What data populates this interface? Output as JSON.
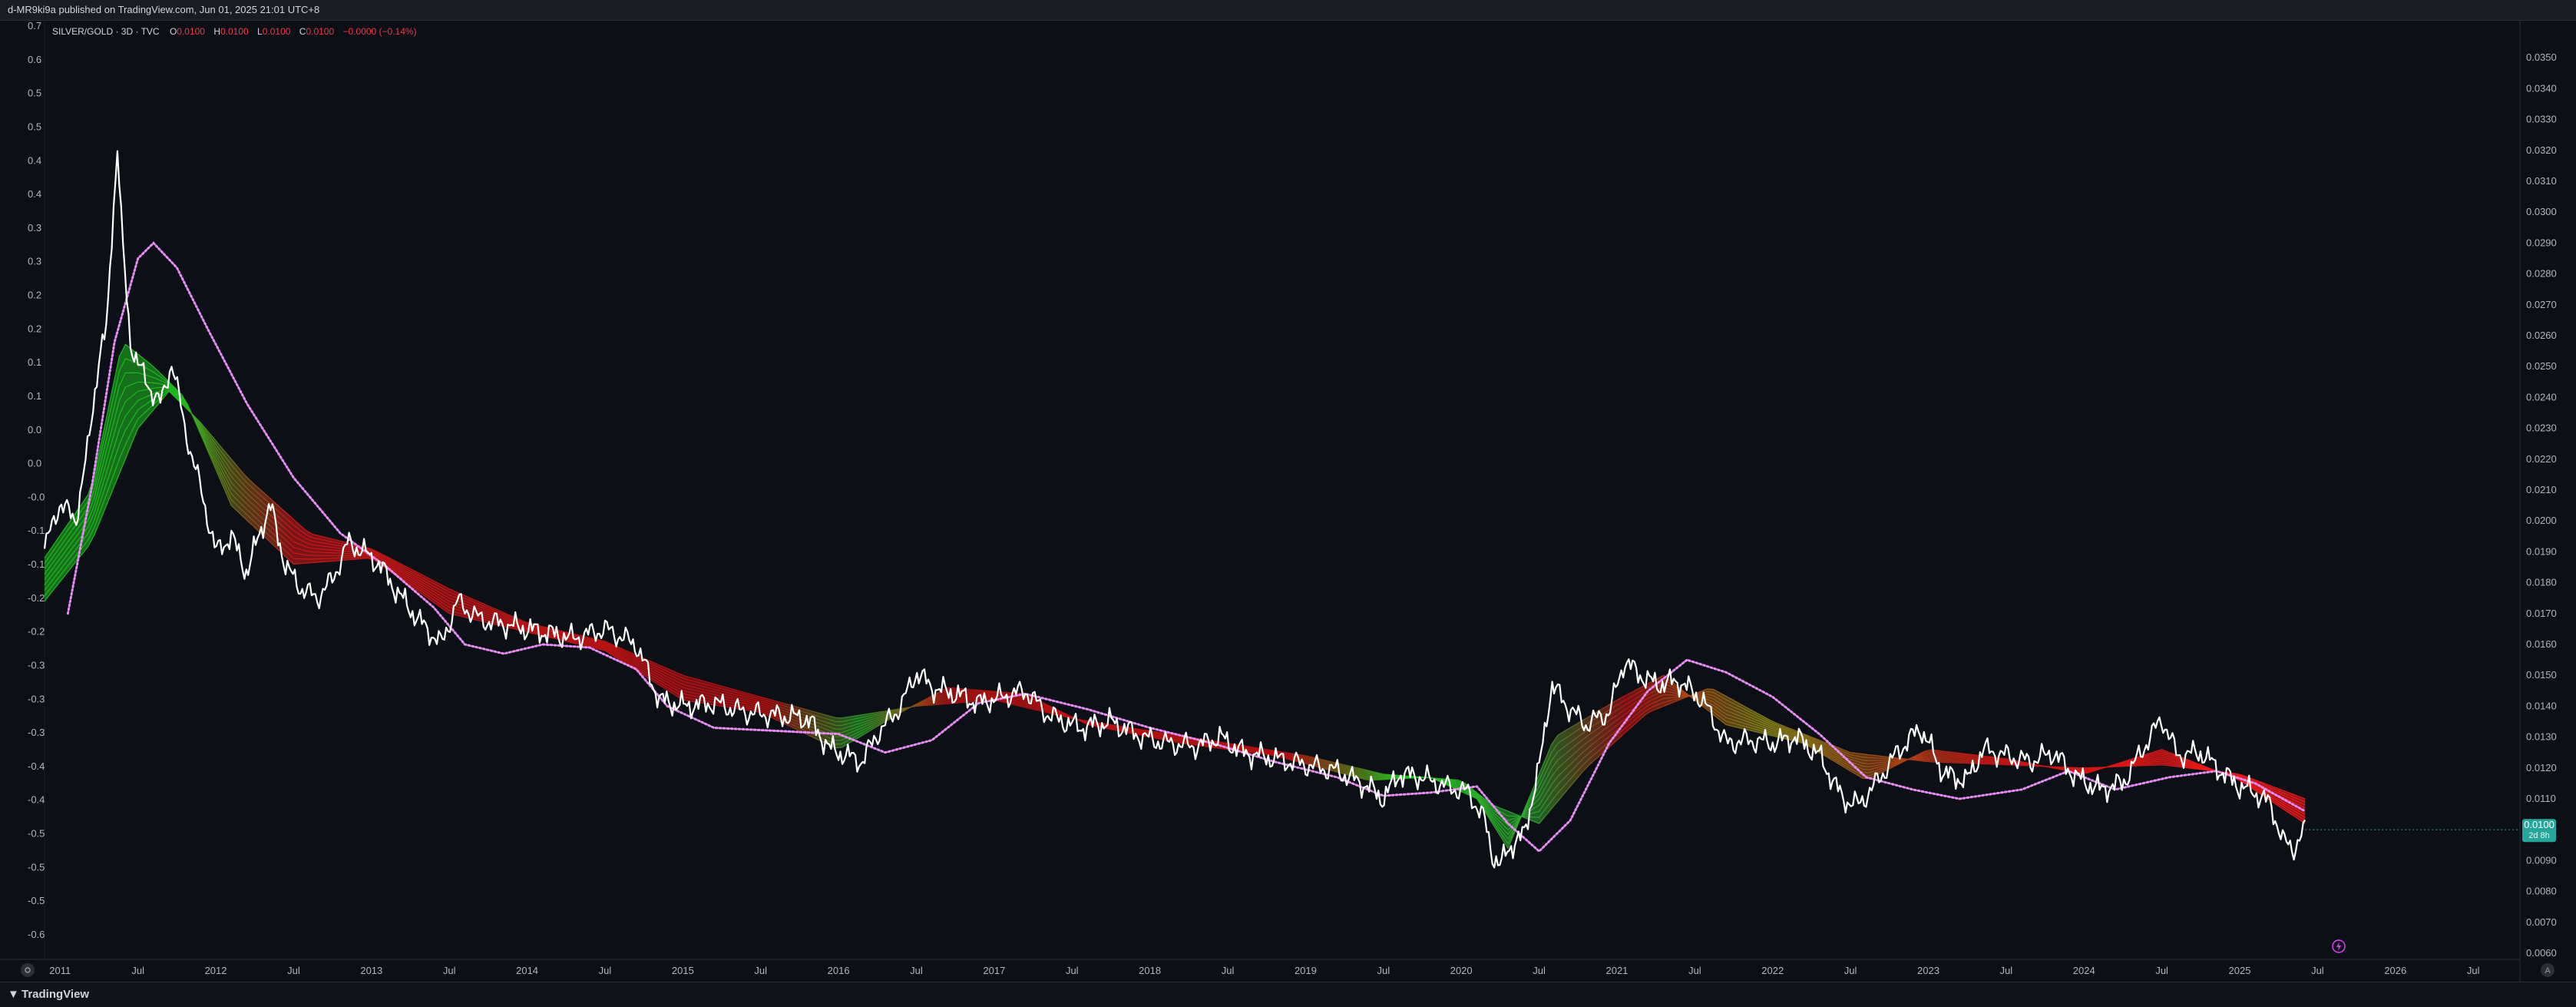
{
  "header": {
    "publish_text": "d-MR9ki9a published on TradingView.com, Jun 01, 2025 21:01 UTC+8"
  },
  "legend": {
    "symbol": "SILVER/GOLD · 3D · TVC",
    "o_label": "O",
    "o_value": "0.0100",
    "h_label": "H",
    "h_value": "0.0100",
    "l_label": "L",
    "l_value": "0.0100",
    "c_label": "C",
    "c_value": "0.0100",
    "change": "−0.0000 (−0.14%)"
  },
  "price_tag": {
    "value": "0.0100",
    "countdown": "2d 8h"
  },
  "footer": {
    "brand": "TradingView"
  },
  "colors": {
    "background": "#0c0f16",
    "price_line": "#ffffff",
    "ribbon_bull": "#1fbf1f",
    "ribbon_bear": "#ff1a1a",
    "trail": "#e68cf2",
    "tag": "#26a69a",
    "axis_text": "#b2b5be"
  },
  "icons": {
    "left_corner": "gear-icon",
    "right_corner": "a-auto-icon",
    "lightning": "lightning-icon"
  },
  "chart_data": {
    "type": "line",
    "x_range": [
      2010.9,
      2026.8
    ],
    "right_axis": {
      "range": [
        0.0058,
        0.0362
      ],
      "ticks": [
        "0.0350",
        "0.0340",
        "0.0330",
        "0.0320",
        "0.0310",
        "0.0300",
        "0.0290",
        "0.0280",
        "0.0270",
        "0.0260",
        "0.0250",
        "0.0240",
        "0.0230",
        "0.0220",
        "0.0210",
        "0.0200",
        "0.0190",
        "0.0180",
        "0.0170",
        "0.0160",
        "0.0150",
        "0.0140",
        "0.0130",
        "0.0120",
        "0.0110",
        "0.0100",
        "0.0090",
        "0.0080",
        "0.0070",
        "0.0060"
      ]
    },
    "left_axis": {
      "ticks": [
        "0.7",
        "0.6",
        "0.5",
        "0.5",
        "0.4",
        "0.4",
        "0.3",
        "0.3",
        "0.2",
        "0.2",
        "0.1",
        "0.1",
        "0.0",
        "0.0",
        "-0.0",
        "-0.1",
        "-0.1",
        "-0.2",
        "-0.2",
        "-0.3",
        "-0.3",
        "-0.3",
        "-0.4",
        "-0.4",
        "-0.5",
        "-0.5",
        "-0.5",
        "-0.6"
      ]
    },
    "x_ticks": [
      {
        "label": "2011",
        "t": 2011.0
      },
      {
        "label": "Jul",
        "t": 2011.5
      },
      {
        "label": "2012",
        "t": 2012.0
      },
      {
        "label": "Jul",
        "t": 2012.5
      },
      {
        "label": "2013",
        "t": 2013.0
      },
      {
        "label": "Jul",
        "t": 2013.5
      },
      {
        "label": "2014",
        "t": 2014.0
      },
      {
        "label": "Jul",
        "t": 2014.5
      },
      {
        "label": "2015",
        "t": 2015.0
      },
      {
        "label": "Jul",
        "t": 2015.5
      },
      {
        "label": "2016",
        "t": 2016.0
      },
      {
        "label": "Jul",
        "t": 2016.5
      },
      {
        "label": "2017",
        "t": 2017.0
      },
      {
        "label": "Jul",
        "t": 2017.5
      },
      {
        "label": "2018",
        "t": 2018.0
      },
      {
        "label": "Jul",
        "t": 2018.5
      },
      {
        "label": "2019",
        "t": 2019.0
      },
      {
        "label": "Jul",
        "t": 2019.5
      },
      {
        "label": "2020",
        "t": 2020.0
      },
      {
        "label": "Jul",
        "t": 2020.5
      },
      {
        "label": "2021",
        "t": 2021.0
      },
      {
        "label": "Jul",
        "t": 2021.5
      },
      {
        "label": "2022",
        "t": 2022.0
      },
      {
        "label": "Jul",
        "t": 2022.5
      },
      {
        "label": "2023",
        "t": 2023.0
      },
      {
        "label": "Jul",
        "t": 2023.5
      },
      {
        "label": "2024",
        "t": 2024.0
      },
      {
        "label": "Jul",
        "t": 2024.5
      },
      {
        "label": "2025",
        "t": 2025.0
      },
      {
        "label": "Jul",
        "t": 2025.5
      },
      {
        "label": "2026",
        "t": 2026.0
      },
      {
        "label": "Jul",
        "t": 2026.5
      }
    ],
    "price": {
      "name": "SILVER/GOLD",
      "points": [
        [
          2010.9,
          0.0191
        ],
        [
          2011.0,
          0.0206
        ],
        [
          2011.1,
          0.02
        ],
        [
          2011.18,
          0.0224
        ],
        [
          2011.25,
          0.0253
        ],
        [
          2011.3,
          0.0262
        ],
        [
          2011.34,
          0.03
        ],
        [
          2011.37,
          0.0322
        ],
        [
          2011.4,
          0.029
        ],
        [
          2011.45,
          0.0258
        ],
        [
          2011.55,
          0.0245
        ],
        [
          2011.65,
          0.0238
        ],
        [
          2011.72,
          0.0252
        ],
        [
          2011.8,
          0.023
        ],
        [
          2011.9,
          0.0211
        ],
        [
          2012.0,
          0.019
        ],
        [
          2012.1,
          0.0195
        ],
        [
          2012.2,
          0.0183
        ],
        [
          2012.28,
          0.0196
        ],
        [
          2012.35,
          0.0205
        ],
        [
          2012.45,
          0.0185
        ],
        [
          2012.55,
          0.0178
        ],
        [
          2012.65,
          0.0175
        ],
        [
          2012.75,
          0.0181
        ],
        [
          2012.85,
          0.0193
        ],
        [
          2012.95,
          0.019
        ],
        [
          2013.05,
          0.0186
        ],
        [
          2013.15,
          0.0178
        ],
        [
          2013.3,
          0.0168
        ],
        [
          2013.45,
          0.016
        ],
        [
          2013.55,
          0.0174
        ],
        [
          2013.7,
          0.0168
        ],
        [
          2013.9,
          0.0166
        ],
        [
          2014.1,
          0.0164
        ],
        [
          2014.3,
          0.0162
        ],
        [
          2014.5,
          0.0165
        ],
        [
          2014.7,
          0.016
        ],
        [
          2014.85,
          0.0142
        ],
        [
          2015.0,
          0.014
        ],
        [
          2015.2,
          0.0141
        ],
        [
          2015.4,
          0.0138
        ],
        [
          2015.6,
          0.0137
        ],
        [
          2015.8,
          0.0136
        ],
        [
          2015.95,
          0.0126
        ],
        [
          2016.05,
          0.0124
        ],
        [
          2016.15,
          0.0122
        ],
        [
          2016.25,
          0.0131
        ],
        [
          2016.4,
          0.014
        ],
        [
          2016.5,
          0.0151
        ],
        [
          2016.6,
          0.0146
        ],
        [
          2016.75,
          0.0144
        ],
        [
          2016.9,
          0.0141
        ],
        [
          2017.05,
          0.0143
        ],
        [
          2017.2,
          0.0145
        ],
        [
          2017.35,
          0.0137
        ],
        [
          2017.55,
          0.0133
        ],
        [
          2017.75,
          0.0135
        ],
        [
          2017.95,
          0.013
        ],
        [
          2018.1,
          0.0128
        ],
        [
          2018.3,
          0.0127
        ],
        [
          2018.45,
          0.013
        ],
        [
          2018.6,
          0.0125
        ],
        [
          2018.8,
          0.0123
        ],
        [
          2019.0,
          0.0121
        ],
        [
          2019.2,
          0.0119
        ],
        [
          2019.4,
          0.0114
        ],
        [
          2019.5,
          0.011
        ],
        [
          2019.6,
          0.0118
        ],
        [
          2019.75,
          0.0117
        ],
        [
          2019.9,
          0.0114
        ],
        [
          2020.05,
          0.0112
        ],
        [
          2020.15,
          0.0103
        ],
        [
          2020.2,
          0.0092
        ],
        [
          2020.25,
          0.0088
        ],
        [
          2020.3,
          0.0094
        ],
        [
          2020.4,
          0.0098
        ],
        [
          2020.5,
          0.012
        ],
        [
          2020.58,
          0.0147
        ],
        [
          2020.68,
          0.014
        ],
        [
          2020.8,
          0.0134
        ],
        [
          2020.95,
          0.0138
        ],
        [
          2021.05,
          0.0155
        ],
        [
          2021.12,
          0.0151
        ],
        [
          2021.25,
          0.0147
        ],
        [
          2021.4,
          0.0148
        ],
        [
          2021.55,
          0.0142
        ],
        [
          2021.7,
          0.0128
        ],
        [
          2021.85,
          0.0129
        ],
        [
          2022.0,
          0.0128
        ],
        [
          2022.15,
          0.013
        ],
        [
          2022.3,
          0.0124
        ],
        [
          2022.45,
          0.011
        ],
        [
          2022.55,
          0.0108
        ],
        [
          2022.65,
          0.0114
        ],
        [
          2022.8,
          0.0125
        ],
        [
          2022.95,
          0.0133
        ],
        [
          2023.1,
          0.0118
        ],
        [
          2023.25,
          0.0116
        ],
        [
          2023.35,
          0.0126
        ],
        [
          2023.5,
          0.0124
        ],
        [
          2023.65,
          0.0122
        ],
        [
          2023.8,
          0.0125
        ],
        [
          2023.95,
          0.0117
        ],
        [
          2024.1,
          0.0113
        ],
        [
          2024.25,
          0.0115
        ],
        [
          2024.4,
          0.0128
        ],
        [
          2024.5,
          0.0136
        ],
        [
          2024.6,
          0.0124
        ],
        [
          2024.75,
          0.0125
        ],
        [
          2024.9,
          0.0118
        ],
        [
          2025.0,
          0.0114
        ],
        [
          2025.1,
          0.0112
        ],
        [
          2025.2,
          0.0108
        ],
        [
          2025.28,
          0.0096
        ],
        [
          2025.35,
          0.0094
        ],
        [
          2025.42,
          0.01
        ]
      ]
    },
    "ribbon_outer": {
      "name": "",
      "points": [
        [
          2010.9,
          0.0174
        ],
        [
          2011.2,
          0.0193
        ],
        [
          2011.5,
          0.023
        ],
        [
          2011.7,
          0.0242
        ],
        [
          2011.9,
          0.0232
        ],
        [
          2012.2,
          0.0214
        ],
        [
          2012.6,
          0.0196
        ],
        [
          2013.0,
          0.0191
        ],
        [
          2013.5,
          0.0178
        ],
        [
          2014.0,
          0.0167
        ],
        [
          2014.5,
          0.0161
        ],
        [
          2015.0,
          0.015
        ],
        [
          2015.5,
          0.0143
        ],
        [
          2016.0,
          0.0136
        ],
        [
          2016.5,
          0.014
        ],
        [
          2017.0,
          0.0142
        ],
        [
          2017.5,
          0.0136
        ],
        [
          2018.0,
          0.0132
        ],
        [
          2018.5,
          0.0128
        ],
        [
          2019.0,
          0.0124
        ],
        [
          2019.5,
          0.0118
        ],
        [
          2020.0,
          0.0116
        ],
        [
          2020.2,
          0.0108
        ],
        [
          2020.5,
          0.0102
        ],
        [
          2020.8,
          0.012
        ],
        [
          2021.2,
          0.0138
        ],
        [
          2021.6,
          0.0146
        ],
        [
          2022.0,
          0.0135
        ],
        [
          2022.5,
          0.0125
        ],
        [
          2023.0,
          0.0122
        ],
        [
          2023.5,
          0.0121
        ],
        [
          2024.0,
          0.012
        ],
        [
          2024.5,
          0.0121
        ],
        [
          2025.0,
          0.0118
        ],
        [
          2025.42,
          0.011
        ]
      ]
    },
    "ribbon_inner": {
      "name": "",
      "points": [
        [
          2010.9,
          0.0188
        ],
        [
          2011.2,
          0.021
        ],
        [
          2011.4,
          0.0258
        ],
        [
          2011.6,
          0.025
        ],
        [
          2011.8,
          0.024
        ],
        [
          2012.1,
          0.0205
        ],
        [
          2012.5,
          0.0186
        ],
        [
          2013.0,
          0.0188
        ],
        [
          2013.5,
          0.017
        ],
        [
          2014.0,
          0.0164
        ],
        [
          2014.5,
          0.0158
        ],
        [
          2015.0,
          0.0142
        ],
        [
          2015.5,
          0.0138
        ],
        [
          2016.0,
          0.0126
        ],
        [
          2016.4,
          0.0138
        ],
        [
          2016.7,
          0.0146
        ],
        [
          2017.2,
          0.0144
        ],
        [
          2017.6,
          0.0134
        ],
        [
          2018.2,
          0.0128
        ],
        [
          2018.8,
          0.0124
        ],
        [
          2019.4,
          0.0116
        ],
        [
          2019.8,
          0.0117
        ],
        [
          2020.1,
          0.011
        ],
        [
          2020.3,
          0.0094
        ],
        [
          2020.6,
          0.013
        ],
        [
          2021.0,
          0.0142
        ],
        [
          2021.3,
          0.015
        ],
        [
          2021.7,
          0.0134
        ],
        [
          2022.2,
          0.0128
        ],
        [
          2022.6,
          0.0116
        ],
        [
          2023.0,
          0.0126
        ],
        [
          2023.5,
          0.0123
        ],
        [
          2024.0,
          0.0118
        ],
        [
          2024.5,
          0.0126
        ],
        [
          2025.0,
          0.0116
        ],
        [
          2025.42,
          0.0102
        ]
      ]
    },
    "trail": {
      "name": "",
      "points": [
        [
          2011.05,
          0.017
        ],
        [
          2011.2,
          0.021
        ],
        [
          2011.35,
          0.0258
        ],
        [
          2011.5,
          0.0285
        ],
        [
          2011.6,
          0.029
        ],
        [
          2011.75,
          0.0282
        ],
        [
          2011.95,
          0.0262
        ],
        [
          2012.2,
          0.0238
        ],
        [
          2012.5,
          0.0214
        ],
        [
          2012.8,
          0.0196
        ],
        [
          2013.1,
          0.0185
        ],
        [
          2013.4,
          0.0172
        ],
        [
          2013.6,
          0.016
        ],
        [
          2013.85,
          0.0157
        ],
        [
          2014.1,
          0.016
        ],
        [
          2014.4,
          0.0159
        ],
        [
          2014.7,
          0.0152
        ],
        [
          2014.9,
          0.014
        ],
        [
          2015.2,
          0.0133
        ],
        [
          2015.6,
          0.0132
        ],
        [
          2016.0,
          0.0131
        ],
        [
          2016.3,
          0.0125
        ],
        [
          2016.6,
          0.0129
        ],
        [
          2016.9,
          0.0141
        ],
        [
          2017.2,
          0.0144
        ],
        [
          2017.6,
          0.0139
        ],
        [
          2018.0,
          0.0133
        ],
        [
          2018.4,
          0.0128
        ],
        [
          2018.8,
          0.0122
        ],
        [
          2019.2,
          0.0117
        ],
        [
          2019.5,
          0.0111
        ],
        [
          2019.8,
          0.0112
        ],
        [
          2020.1,
          0.0114
        ],
        [
          2020.3,
          0.0102
        ],
        [
          2020.5,
          0.0093
        ],
        [
          2020.7,
          0.0103
        ],
        [
          2020.95,
          0.0128
        ],
        [
          2021.2,
          0.0145
        ],
        [
          2021.45,
          0.0155
        ],
        [
          2021.7,
          0.0151
        ],
        [
          2022.0,
          0.0143
        ],
        [
          2022.3,
          0.0131
        ],
        [
          2022.6,
          0.0117
        ],
        [
          2022.9,
          0.0113
        ],
        [
          2023.2,
          0.011
        ],
        [
          2023.6,
          0.0113
        ],
        [
          2023.9,
          0.0119
        ],
        [
          2024.2,
          0.0113
        ],
        [
          2024.55,
          0.0117
        ],
        [
          2024.85,
          0.0119
        ],
        [
          2025.1,
          0.0115
        ],
        [
          2025.42,
          0.0106
        ]
      ]
    },
    "last_point": {
      "t": 2025.42,
      "value": 0.01
    }
  }
}
